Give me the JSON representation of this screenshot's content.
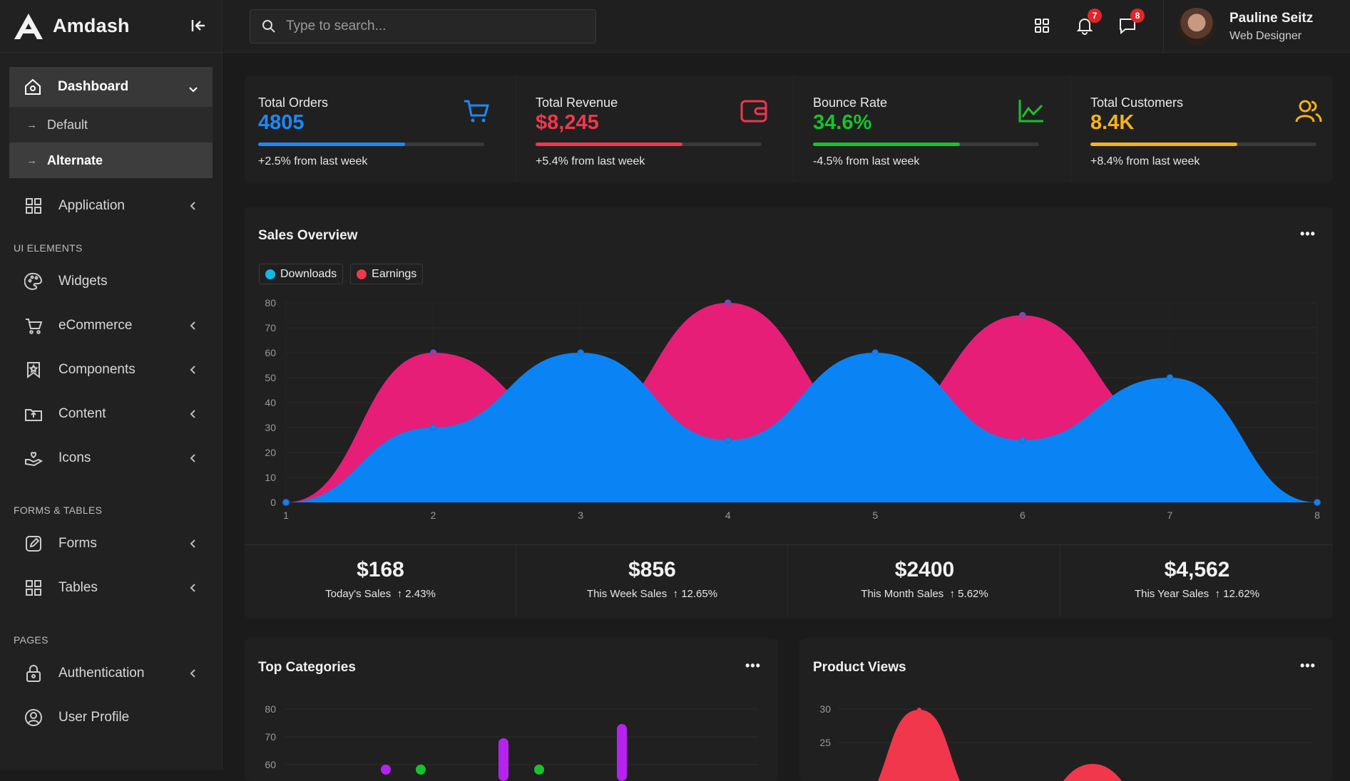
{
  "brand": {
    "name": "Amdash"
  },
  "search": {
    "placeholder": "Type to search..."
  },
  "topbar": {
    "notifications_count": "7",
    "messages_count": "8"
  },
  "user": {
    "name": "Pauline Seitz",
    "role": "Web Designer"
  },
  "sidebar": {
    "dashboard": "Dashboard",
    "dashboard_sub": [
      "Default",
      "Alternate"
    ],
    "application": "Application",
    "sec_ui": "UI ELEMENTS",
    "widgets": "Widgets",
    "ecommerce": "eCommerce",
    "components": "Components",
    "content": "Content",
    "icons": "Icons",
    "sec_forms": "FORMS & TABLES",
    "forms": "Forms",
    "tables": "Tables",
    "sec_pages": "PAGES",
    "authentication": "Authentication",
    "user_profile": "User Profile"
  },
  "stats": [
    {
      "label": "Total Orders",
      "value": "4805",
      "change": "+2.5% from last week",
      "color": "#1e88f5",
      "progress": 0.65
    },
    {
      "label": "Total Revenue",
      "value": "$8,245",
      "change": "+5.4% from last week",
      "color": "#f0374b",
      "progress": 0.65
    },
    {
      "label": "Bounce Rate",
      "value": "34.6%",
      "change": "-4.5% from last week",
      "color": "#17c32c",
      "progress": 0.65
    },
    {
      "label": "Total Customers",
      "value": "8.4K",
      "change": "+8.4% from last week",
      "color": "#f5b21a",
      "progress": 0.65
    }
  ],
  "sales_overview": {
    "title": "Sales Overview",
    "more": "•••",
    "legend": [
      "Downloads",
      "Earnings"
    ]
  },
  "chart_data": [
    {
      "type": "area",
      "title": "Sales Overview",
      "x": [
        1,
        2,
        3,
        4,
        5,
        6,
        7,
        8
      ],
      "ylim": [
        0,
        80
      ],
      "yticks": [
        0,
        10,
        20,
        30,
        40,
        50,
        60,
        70,
        80
      ],
      "series": [
        {
          "name": "Earnings",
          "color": "#e61e78",
          "values": [
            0,
            60,
            30,
            80,
            30,
            75,
            30,
            0
          ]
        },
        {
          "name": "Downloads",
          "color": "#0a84f5",
          "values": [
            0,
            30,
            60,
            25,
            60,
            25,
            50,
            0
          ]
        }
      ]
    }
  ],
  "summary": [
    {
      "value": "$168",
      "label": "Today's Sales",
      "change": "↑ 2.43%"
    },
    {
      "value": "$856",
      "label": "This Week Sales",
      "change": "↑ 12.65%"
    },
    {
      "value": "$2400",
      "label": "This Month Sales",
      "change": "↑ 5.62%"
    },
    {
      "value": "$4,562",
      "label": "This Year Sales",
      "change": "↑ 12.62%"
    }
  ],
  "top_categories": {
    "title": "Top Categories",
    "more": "•••",
    "yticks": [
      "80",
      "70",
      "60"
    ]
  },
  "product_views": {
    "title": "Product Views",
    "more": "•••",
    "yticks": [
      "30",
      "25"
    ]
  }
}
